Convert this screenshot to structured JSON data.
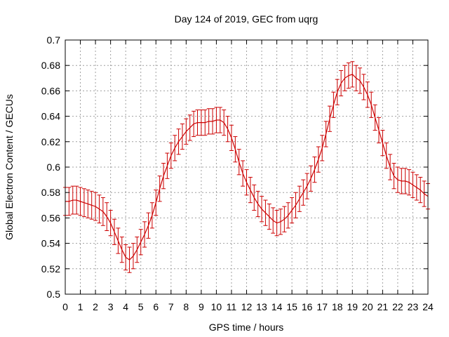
{
  "chart_data": {
    "type": "line",
    "title": "Day 124 of 2019, GEC from uqrg",
    "xlabel": "GPS time / hours",
    "ylabel": "Global Electron Content / GECUs",
    "xlim": [
      0,
      24
    ],
    "ylim": [
      0.5,
      0.7
    ],
    "grid": true,
    "x_ticks": [
      "0",
      "1",
      "2",
      "3",
      "4",
      "5",
      "6",
      "7",
      "8",
      "9",
      "10",
      "11",
      "12",
      "13",
      "14",
      "15",
      "16",
      "17",
      "18",
      "19",
      "20",
      "21",
      "22",
      "23",
      "24"
    ],
    "y_ticks": [
      "0.5",
      "0.52",
      "0.54",
      "0.56",
      "0.58",
      "0.6",
      "0.62",
      "0.64",
      "0.66",
      "0.68",
      "0.7"
    ],
    "series_color": "#cc0000",
    "series": [
      {
        "name": "GEC",
        "x": [
          0,
          0.25,
          0.5,
          0.75,
          1,
          1.25,
          1.5,
          1.75,
          2,
          2.25,
          2.5,
          2.75,
          3,
          3.25,
          3.5,
          3.75,
          4,
          4.25,
          4.5,
          4.75,
          5,
          5.25,
          5.5,
          5.75,
          6,
          6.25,
          6.5,
          6.75,
          7,
          7.25,
          7.5,
          7.75,
          8,
          8.25,
          8.5,
          8.75,
          9,
          9.25,
          9.5,
          9.75,
          10,
          10.25,
          10.5,
          10.75,
          11,
          11.25,
          11.5,
          11.75,
          12,
          12.25,
          12.5,
          12.75,
          13,
          13.25,
          13.5,
          13.75,
          14,
          14.25,
          14.5,
          14.75,
          15,
          15.25,
          15.5,
          15.75,
          16,
          16.25,
          16.5,
          16.75,
          17,
          17.25,
          17.5,
          17.75,
          18,
          18.25,
          18.5,
          18.75,
          19,
          19.25,
          19.5,
          19.75,
          20,
          20.25,
          20.5,
          20.75,
          21,
          21.25,
          21.5,
          21.75,
          22,
          22.25,
          22.5,
          22.75,
          23,
          23.25,
          23.5,
          23.75,
          24
        ],
        "values": [
          0.573,
          0.573,
          0.574,
          0.574,
          0.573,
          0.572,
          0.571,
          0.57,
          0.569,
          0.567,
          0.565,
          0.561,
          0.556,
          0.549,
          0.542,
          0.535,
          0.529,
          0.527,
          0.53,
          0.535,
          0.541,
          0.547,
          0.554,
          0.562,
          0.572,
          0.583,
          0.593,
          0.601,
          0.609,
          0.615,
          0.62,
          0.624,
          0.628,
          0.631,
          0.634,
          0.635,
          0.635,
          0.635,
          0.636,
          0.636,
          0.637,
          0.637,
          0.635,
          0.63,
          0.623,
          0.614,
          0.604,
          0.595,
          0.588,
          0.582,
          0.576,
          0.571,
          0.567,
          0.564,
          0.561,
          0.558,
          0.556,
          0.557,
          0.559,
          0.562,
          0.566,
          0.57,
          0.575,
          0.58,
          0.585,
          0.591,
          0.598,
          0.606,
          0.615,
          0.626,
          0.638,
          0.649,
          0.659,
          0.666,
          0.67,
          0.672,
          0.673,
          0.67,
          0.668,
          0.663,
          0.657,
          0.649,
          0.639,
          0.629,
          0.619,
          0.609,
          0.6,
          0.593,
          0.59,
          0.589,
          0.589,
          0.588,
          0.586,
          0.584,
          0.582,
          0.579,
          0.577
        ],
        "errors": [
          0.011,
          0.011,
          0.011,
          0.011,
          0.011,
          0.011,
          0.011,
          0.011,
          0.011,
          0.011,
          0.011,
          0.011,
          0.01,
          0.01,
          0.01,
          0.01,
          0.01,
          0.01,
          0.01,
          0.01,
          0.01,
          0.01,
          0.01,
          0.01,
          0.01,
          0.01,
          0.01,
          0.01,
          0.01,
          0.01,
          0.01,
          0.01,
          0.01,
          0.01,
          0.01,
          0.01,
          0.01,
          0.01,
          0.01,
          0.01,
          0.01,
          0.01,
          0.01,
          0.01,
          0.01,
          0.01,
          0.01,
          0.01,
          0.01,
          0.01,
          0.01,
          0.01,
          0.01,
          0.01,
          0.01,
          0.01,
          0.01,
          0.01,
          0.01,
          0.01,
          0.01,
          0.01,
          0.01,
          0.01,
          0.01,
          0.01,
          0.01,
          0.01,
          0.01,
          0.01,
          0.01,
          0.01,
          0.01,
          0.01,
          0.01,
          0.01,
          0.01,
          0.01,
          0.01,
          0.01,
          0.01,
          0.01,
          0.01,
          0.01,
          0.01,
          0.01,
          0.01,
          0.01,
          0.01,
          0.01,
          0.01,
          0.01,
          0.01,
          0.01,
          0.01,
          0.01,
          0.01
        ]
      }
    ]
  }
}
